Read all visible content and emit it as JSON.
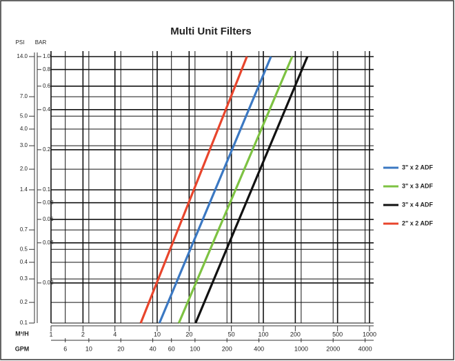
{
  "chart_data": {
    "type": "line",
    "title": "Multi Unit Filters",
    "ylabel": "BAR",
    "y2label": "PSI",
    "xlabel": "M³/H",
    "x2label": "GPM",
    "log_x": true,
    "log_y": true,
    "grid": true,
    "legend": "right",
    "xlim": [
      1,
      1000
    ],
    "xticks": [
      1,
      2,
      4,
      10,
      20,
      50,
      100,
      200,
      500,
      1000
    ],
    "x2lim": [
      4.403,
      4403
    ],
    "x2ticks": [
      6,
      10,
      20,
      40,
      60,
      100,
      200,
      400,
      1000,
      2000,
      4000
    ],
    "ylim": [
      0.01,
      1
    ],
    "yticks": [
      {
        "value": 1,
        "label": "1.0"
      },
      0.8,
      0.6,
      0.4,
      0.2,
      0.1,
      0.08,
      0.06,
      0.04,
      0.02
    ],
    "y2lim": [
      0.14,
      14
    ],
    "y2ticks": [
      {
        "value": 14,
        "label": "14.0"
      },
      {
        "value": 7,
        "label": "7.0"
      },
      {
        "value": 5,
        "label": "5.0"
      },
      {
        "value": 4,
        "label": "4.0"
      },
      {
        "value": 3,
        "label": "3.0"
      },
      {
        "value": 2,
        "label": "2.0"
      },
      1.4,
      0.7,
      0.5,
      0.4,
      0.3,
      0.2,
      {
        "value": 0.14,
        "label": "0.1"
      }
    ],
    "series": [
      {
        "name": "3\" x 2 ADF",
        "color": "#3b78c2",
        "x": [
          10.5,
          118
        ],
        "values": [
          0.01,
          1
        ]
      },
      {
        "name": "3\" x 3 ADF",
        "color": "#7dc242",
        "x": [
          16,
          187
        ],
        "values": [
          0.01,
          1
        ]
      },
      {
        "name": "3\" x 4 ADF",
        "color": "#111111",
        "x": [
          23,
          260
        ],
        "values": [
          0.01,
          1
        ]
      },
      {
        "name": "2\" x 2 ADF",
        "color": "#e8452c",
        "x": [
          7,
          70
        ],
        "values": [
          0.01,
          1
        ]
      }
    ]
  }
}
